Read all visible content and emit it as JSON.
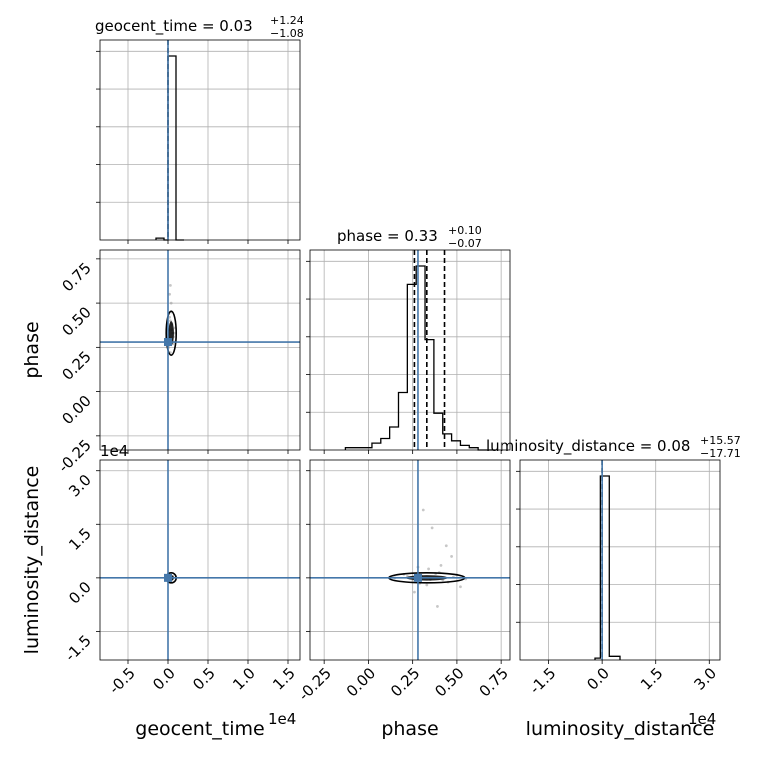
{
  "chart_data": {
    "type": "corner",
    "parameters": [
      "geocent_time",
      "phase",
      "luminosity_distance"
    ],
    "axis_labels": [
      "geocent_time",
      "phase",
      "luminosity_distance"
    ],
    "truth_color": "#4477aa",
    "scale_multipliers": {
      "geocent_time": "1e4",
      "luminosity_distance": "1e4"
    },
    "truths": {
      "geocent_time": 0.0,
      "phase": 0.28,
      "luminosity_distance": 0.0
    },
    "ranges": {
      "geocent_time": [
        -0.85,
        1.65
      ],
      "phase": [
        -0.33,
        0.8
      ],
      "luminosity_distance": [
        -2.3,
        3.3
      ]
    },
    "ticks": {
      "geocent_time": [
        "-0.5",
        "0.0",
        "0.5",
        "1.0",
        "1.5"
      ],
      "phase": [
        "-0.25",
        "0.00",
        "0.25",
        "0.50",
        "0.75"
      ],
      "luminosity_distance": [
        "-1.5",
        "0.0",
        "1.5",
        "3.0"
      ]
    },
    "titles": [
      {
        "param": "geocent_time",
        "base": "geocent_time = 0.03",
        "plus": "+1.24",
        "minus": "−1.08"
      },
      {
        "param": "phase",
        "base": "phase = 0.33",
        "plus": "+0.10",
        "minus": "−0.07"
      },
      {
        "param": "luminosity_distance",
        "base": "luminosity_distance = 0.08",
        "plus": "+15.57",
        "minus": "−17.71"
      }
    ],
    "quantile_lines": {
      "geocent_time": [
        0.0
      ],
      "phase": [
        0.26,
        0.33,
        0.43
      ],
      "luminosity_distance": [
        0.0
      ]
    },
    "histograms": {
      "geocent_time": {
        "edges": [
          -0.15,
          -0.05,
          0.0,
          0.1,
          0.2
        ],
        "counts": [
          0.01,
          0.0,
          1.0,
          0.0
        ]
      },
      "phase": {
        "edges": [
          -0.13,
          -0.08,
          -0.03,
          0.02,
          0.07,
          0.12,
          0.17,
          0.22,
          0.27,
          0.32,
          0.37,
          0.42,
          0.47,
          0.52,
          0.57,
          0.62,
          0.67,
          0.72
        ],
        "counts": [
          0.01,
          0.01,
          0.01,
          0.03,
          0.05,
          0.1,
          0.25,
          0.72,
          0.8,
          0.48,
          0.16,
          0.07,
          0.04,
          0.02,
          0.01,
          0.0,
          0.0
        ]
      },
      "luminosity_distance": {
        "edges": [
          -0.2,
          -0.05,
          0.2,
          0.5
        ],
        "counts": [
          0.01,
          1.0,
          0.02
        ]
      }
    },
    "scatter": {
      "phase_vs_geocent_time": {
        "x": [
          0.02,
          0.05,
          0.08,
          0.03,
          0.06,
          0.01,
          0.04,
          0.07,
          0.02,
          0.05,
          0.03,
          -0.02,
          0.09,
          0.04,
          0.06,
          0.02,
          0.08,
          0.05,
          0.03,
          0.01
        ],
        "y": [
          0.3,
          0.35,
          0.28,
          0.4,
          0.33,
          0.25,
          0.45,
          0.31,
          0.55,
          0.38,
          0.22,
          0.3,
          0.36,
          0.5,
          0.27,
          0.42,
          0.33,
          0.29,
          0.6,
          0.35
        ]
      },
      "luminosity_distance_vs_geocent_time": {
        "x": [
          0.01,
          0.03,
          0.05,
          0.02,
          0.04,
          0.06,
          0.02,
          0.03
        ],
        "y": [
          0.0,
          0.05,
          -0.05,
          0.02,
          -0.02,
          0.04,
          -0.03,
          0.01
        ]
      },
      "luminosity_distance_vs_phase": {
        "x": [
          0.15,
          0.2,
          0.25,
          0.3,
          0.35,
          0.4,
          0.45,
          0.5,
          0.28,
          0.33,
          0.38,
          0.42,
          0.22,
          0.48,
          0.55,
          0.31,
          0.36,
          0.44,
          0.26,
          0.39,
          0.47,
          0.34,
          0.29,
          0.41,
          0.52
        ],
        "y": [
          0.0,
          0.1,
          -0.1,
          0.05,
          -0.05,
          0.15,
          -0.12,
          0.08,
          0.3,
          -0.2,
          0.12,
          -0.06,
          0.04,
          0.02,
          -0.03,
          1.9,
          1.4,
          0.9,
          -0.4,
          -0.8,
          0.6,
          0.25,
          -0.15,
          0.35,
          -0.25
        ]
      }
    }
  }
}
